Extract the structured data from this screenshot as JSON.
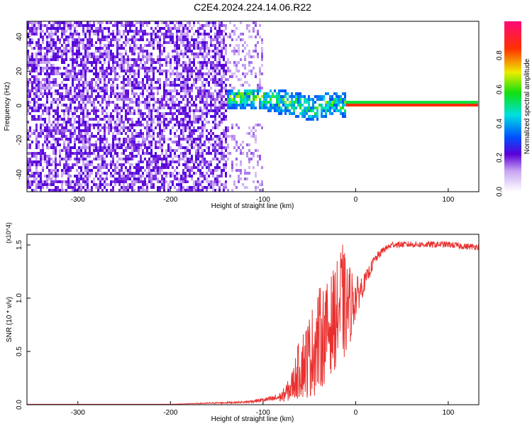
{
  "title": "C2E4.2024.224.14.06.R22",
  "chart_data": [
    {
      "type": "heatmap",
      "title": "C2E4.2024.224.14.06.R22",
      "xlabel": "Height of straight line (km)",
      "ylabel": "Frequency (Hz)",
      "xlim": [
        -355,
        133
      ],
      "ylim": [
        -50,
        49
      ],
      "xticks": [
        -300,
        -200,
        -100,
        0,
        100
      ],
      "xtick_labels": [
        "-300",
        "-200",
        "-100",
        "0",
        "100"
      ],
      "yticks": [
        -40,
        -20,
        0,
        20,
        40
      ],
      "ytick_labels": [
        "-40",
        "-20",
        "0",
        "20",
        "40"
      ],
      "colorbar": {
        "label": "Normalized spectral amplitude",
        "range": [
          0,
          1
        ],
        "ticks": [
          0.0,
          0.2,
          0.4,
          0.6,
          0.8
        ],
        "tick_labels": [
          "0.0",
          "0.2",
          "0.4",
          "0.6",
          "0.8"
        ]
      },
      "regions": [
        {
          "description": "broadband noise",
          "x": [
            -355,
            -140
          ],
          "freq": [
            -50,
            49
          ],
          "amplitude": 0.1
        },
        {
          "description": "scattered noise",
          "x": [
            -140,
            -100
          ],
          "freq": [
            -50,
            49
          ],
          "amplitude": 0.05
        },
        {
          "description": "signal band",
          "x": [
            -140,
            -10
          ],
          "freq": [
            -10,
            10
          ],
          "amplitude": 0.4
        },
        {
          "description": "steady tone",
          "x": [
            -10,
            133
          ],
          "freq": [
            -1,
            2
          ],
          "amplitude": 1.0
        }
      ],
      "tone_track": [
        {
          "x": -140,
          "freq": 5
        },
        {
          "x": -120,
          "freq": 5
        },
        {
          "x": -100,
          "freq": 4
        },
        {
          "x": -80,
          "freq": 2
        },
        {
          "x": -60,
          "freq": 0
        },
        {
          "x": -45,
          "freq": -2
        },
        {
          "x": -30,
          "freq": 1
        },
        {
          "x": -20,
          "freq": 1
        },
        {
          "x": -10,
          "freq": 0.5
        },
        {
          "x": 0,
          "freq": 0.5
        },
        {
          "x": 133,
          "freq": 0.5
        }
      ]
    },
    {
      "type": "line",
      "title": "",
      "xlabel": "Height of straight line (km)",
      "ylabel": "SNR (10 * v/v)",
      "y_multiplier": "(x10^4)",
      "xlim": [
        -355,
        133
      ],
      "ylim": [
        0,
        1.6
      ],
      "xticks": [
        -300,
        -200,
        -100,
        0,
        100
      ],
      "xtick_labels": [
        "-300",
        "-200",
        "-100",
        "0",
        "100"
      ],
      "yticks": [
        0.0,
        0.5,
        1.0,
        1.5
      ],
      "ytick_labels": [
        "0.0",
        "0.5",
        "1.0",
        "1.5"
      ],
      "series": [
        {
          "color": "#e8302e",
          "x": [
            -355,
            -300,
            -200,
            -120,
            -100,
            -90,
            -80,
            -70,
            -60,
            -50,
            -40,
            -30,
            -20,
            -15,
            -10,
            -5,
            0,
            10,
            20,
            30,
            40,
            60,
            80,
            100,
            120,
            133
          ],
          "y": [
            0.0,
            0.0,
            0.0,
            0.02,
            0.04,
            0.05,
            0.07,
            0.15,
            0.35,
            0.45,
            0.6,
            0.7,
            0.85,
            0.95,
            0.9,
            0.95,
            1.0,
            1.15,
            1.35,
            1.45,
            1.5,
            1.5,
            1.5,
            1.5,
            1.48,
            1.48
          ],
          "noise_amplitude": [
            0.0,
            0.0,
            0.0,
            0.01,
            0.02,
            0.03,
            0.05,
            0.12,
            0.3,
            0.4,
            0.5,
            0.45,
            0.5,
            0.6,
            0.45,
            0.35,
            0.2,
            0.08,
            0.05,
            0.03,
            0.03,
            0.03,
            0.03,
            0.03,
            0.03,
            0.03
          ]
        }
      ]
    }
  ]
}
